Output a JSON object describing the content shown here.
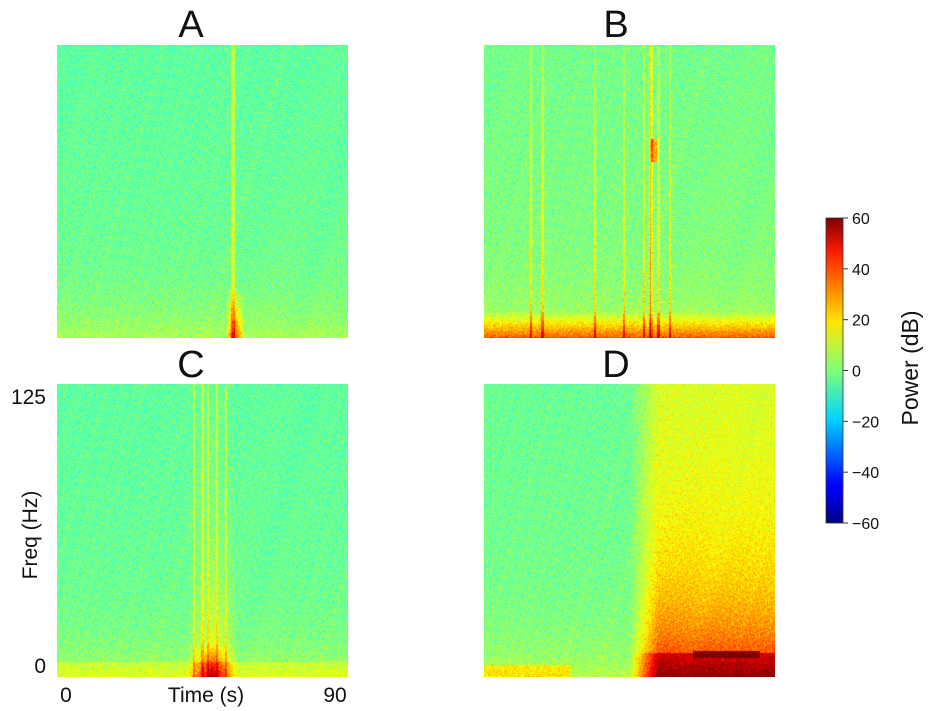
{
  "chart_data": {
    "type": "heatmap",
    "panels": [
      {
        "label": "A",
        "pattern": "narrow-vertical-transient"
      },
      {
        "label": "B",
        "pattern": "low-frequency-band-with-spikes"
      },
      {
        "label": "C",
        "pattern": "broadband-burst-mid-record"
      },
      {
        "label": "D",
        "pattern": "broadband-energy-late-record"
      }
    ],
    "x_axis": {
      "label": "Time (s)",
      "range": [
        0,
        90
      ],
      "tick_labels": [
        "0",
        "90"
      ]
    },
    "y_axis": {
      "label": "Freq (Hz)",
      "range": [
        0,
        125
      ],
      "tick_labels": [
        "0",
        "125"
      ]
    },
    "colorbar": {
      "label": "Power (dB)",
      "range": [
        -60,
        60
      ],
      "ticks": [
        "60",
        "40",
        "20",
        "0",
        "−20",
        "−40",
        "−60"
      ],
      "colormap": "jet"
    },
    "grid": false,
    "legend": "none"
  }
}
